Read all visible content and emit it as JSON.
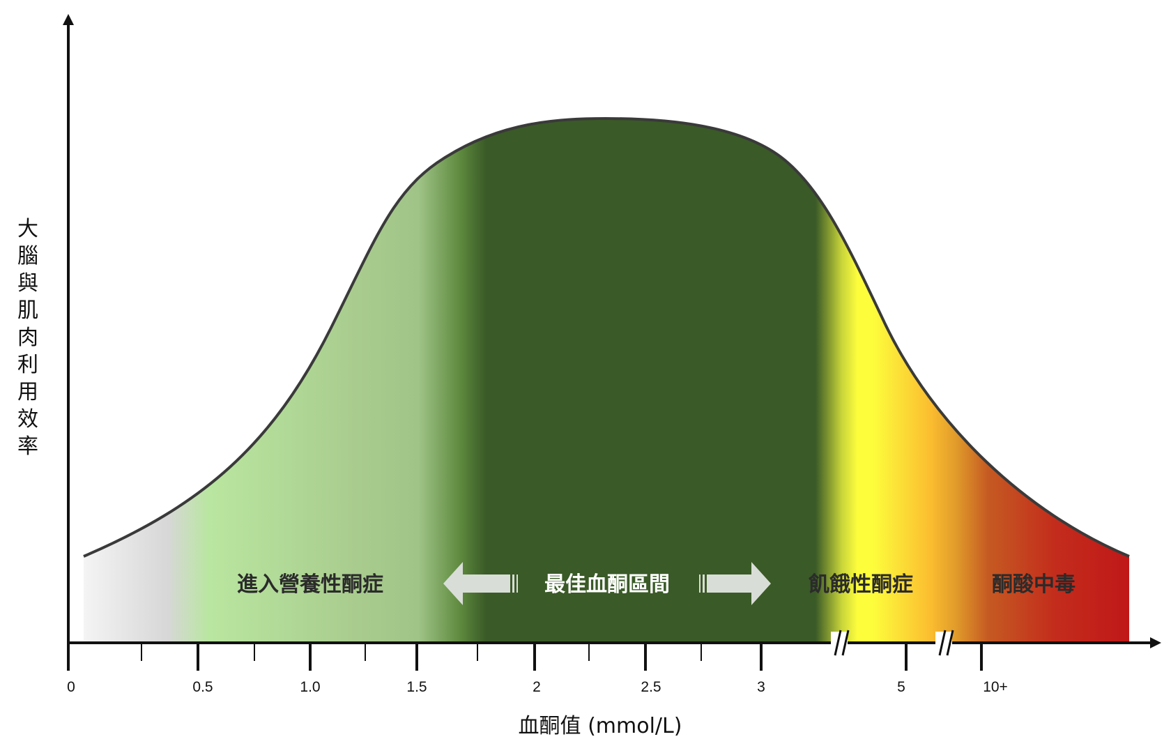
{
  "chart_data": {
    "type": "area",
    "title": "",
    "xlabel": "血酮值 (mmol/L)",
    "ylabel": "大腦與肌肉利用效率",
    "x_ticks": [
      "0",
      "0.5",
      "1.0",
      "1.5",
      "2",
      "2.5",
      "3",
      "5",
      "10+"
    ],
    "axis_breaks": [
      "3-5",
      "5-10+"
    ],
    "zones": [
      {
        "label": "進入營養性酮症",
        "from": "0.5",
        "to": "1.5",
        "color": "#a9cc8e",
        "text_color": "#2b2b2b"
      },
      {
        "label": "最佳血酮區間",
        "from": "1.5",
        "to": "3",
        "color": "#3a5a27",
        "text_color": "#ffffff"
      },
      {
        "label": "飢餓性酮症",
        "from": "3",
        "to": "5",
        "color": "#fbe93a",
        "text_color": "#2b2b2b"
      },
      {
        "label": "酮酸中毒",
        "from": "5",
        "to": "10+",
        "color": "#c01818",
        "text_color": "#2b2b2b"
      }
    ],
    "curve": "bell-shaped, peak near 2.3 mmol/L",
    "colors": {
      "gray": "#d9d9d9",
      "light_green": "#b9e6a0",
      "mid_green": "#a9cc8e",
      "dark_green": "#3a5a27",
      "yellow": "#fdfd3c",
      "orange": "#fbbd30",
      "rust": "#c55a22",
      "red": "#c01818",
      "arrow": "#d9ddd7",
      "outline": "#3a3a3a"
    }
  }
}
